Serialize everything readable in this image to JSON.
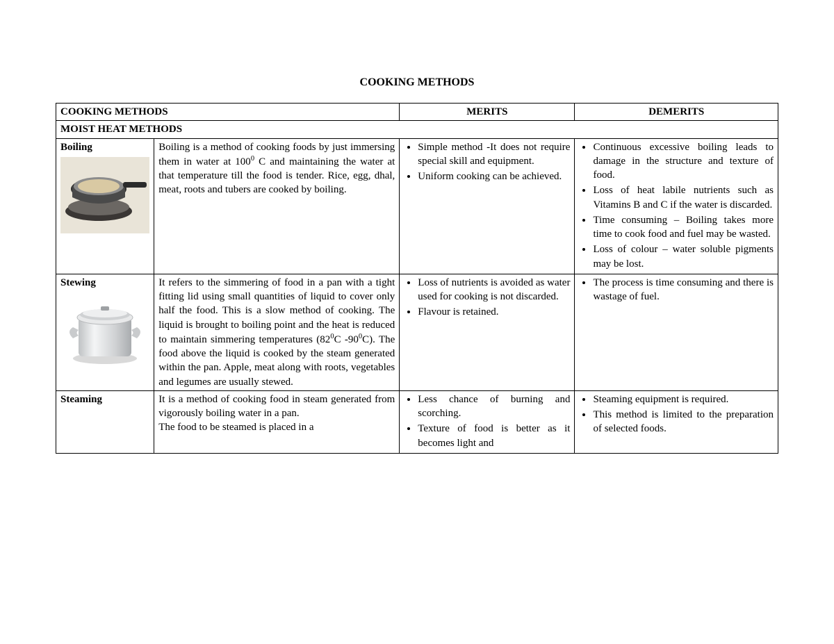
{
  "page_title": "COOKING METHODS",
  "headers": {
    "col_methods": "COOKING METHODS",
    "col_merits": "MERITS",
    "col_demerits": "DEMERITS"
  },
  "section_header": "MOIST HEAT METHODS",
  "rows": [
    {
      "name": "Boiling",
      "image": "pan",
      "desc_html": "Boiling is a method of cooking foods by just immersing them in water at 100<sup>0</sup> C and maintaining the water at that temperature till the food is tender.  Rice, egg, dhal, meat, roots and tubers are cooked by boiling.",
      "merits": [
        "Simple method -It does not require special skill and equipment.",
        "Uniform cooking can be achieved."
      ],
      "demerits": [
        "Continuous excessive boiling leads to damage in the structure and texture of food.",
        "Loss of heat labile nutrients such as Vitamins B and C if the water is discarded.",
        "Time consuming – Boiling takes more time to cook food and fuel may be wasted.",
        "Loss of colour – water soluble pigments may be lost."
      ]
    },
    {
      "name": "Stewing",
      "image": "pot",
      "desc_html": "It refers to the simmering of food in a pan with a tight fitting lid using small quantities of liquid to cover only half the food.  This is a slow method of cooking. The liquid is brought to boiling point and the heat is reduced to maintain simmering temperatures (82<sup>0</sup>C -90<sup>0</sup>C). The food above the liquid is cooked by the steam generated within the pan.  Apple, meat along with roots, vegetables and legumes are usually stewed.",
      "merits": [
        "Loss of nutrients is avoided as water used for cooking is not discarded.",
        "Flavour is retained."
      ],
      "demerits": [
        "The process is time consuming and there is wastage of fuel."
      ]
    },
    {
      "name": "Steaming",
      "image": null,
      "desc_html": "It is a method of cooking food in steam generated from vigorously boiling water in a pan.<br>The food to be steamed is placed in a",
      "merits": [
        "Less chance of burning and scorching.",
        "Texture of food is better as it becomes light and"
      ],
      "demerits": [
        "Steaming equipment is required.",
        "This method is limited to the preparation of selected foods."
      ]
    }
  ]
}
